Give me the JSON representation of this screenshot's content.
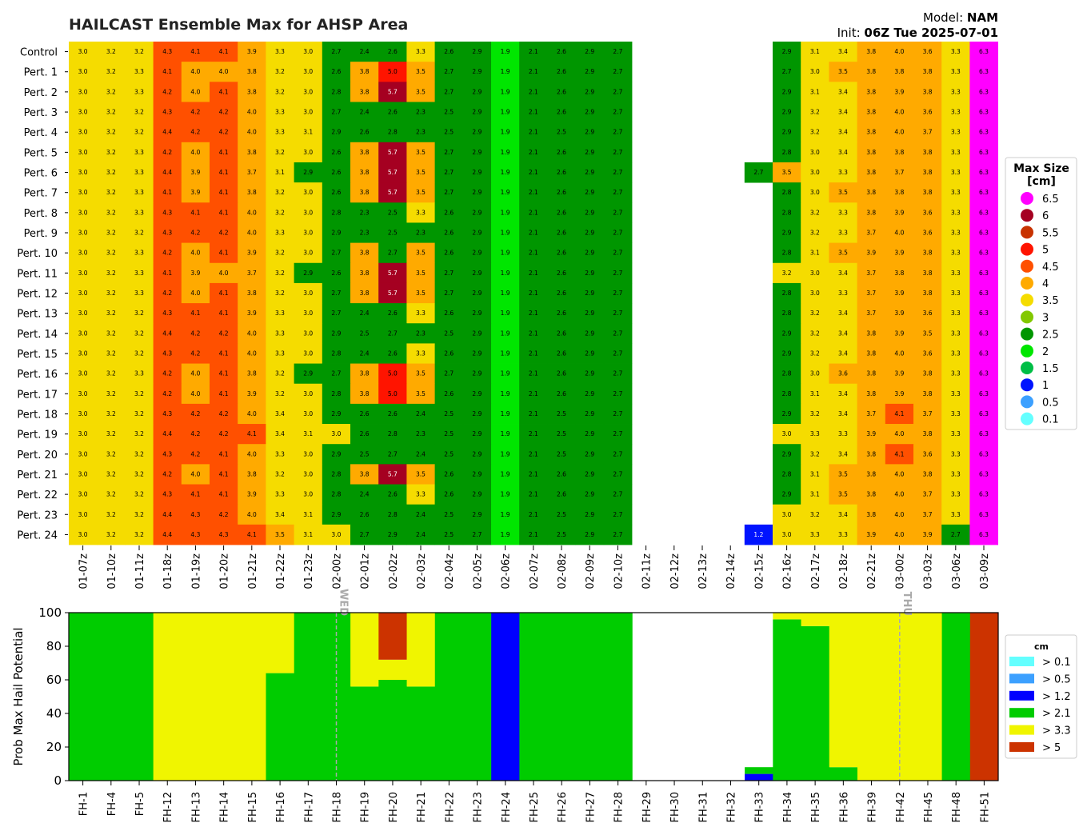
{
  "header": {
    "title": "HAILCAST Ensemble Max for AHSP Area",
    "model_label": "Model:",
    "model_value": "NAM",
    "init_label": "Init:",
    "init_value": "06Z Tue 2025-07-01"
  },
  "colors": {
    "6.5": "#ff00ff",
    "6": "#a50021",
    "5.5": "#c83200",
    "5": "#ff1400",
    "4.5": "#ff5000",
    "4": "#ffaa00",
    "3.5": "#f5dc00",
    "3": "#82c800",
    "2.5": "#009600",
    "2": "#00e600",
    "1.5": "#00be46",
    "1": "#0014ff",
    "0.5": "#3ca0ff",
    "0.1": "#64ffff"
  },
  "chart_data": [
    {
      "type": "heatmap",
      "title": "HAILCAST Ensemble Max for AHSP Area",
      "rows": [
        "Control",
        "Pert. 1",
        "Pert. 2",
        "Pert. 3",
        "Pert. 4",
        "Pert. 5",
        "Pert. 6",
        "Pert. 7",
        "Pert. 8",
        "Pert. 9",
        "Pert. 10",
        "Pert. 11",
        "Pert. 12",
        "Pert. 13",
        "Pert. 14",
        "Pert. 15",
        "Pert. 16",
        "Pert. 17",
        "Pert. 18",
        "Pert. 19",
        "Pert. 20",
        "Pert. 21",
        "Pert. 22",
        "Pert. 23",
        "Pert. 24"
      ],
      "columns": [
        "01-07z",
        "01-10z",
        "01-11z",
        "01-18z",
        "01-19z",
        "01-20z",
        "01-21z",
        "01-22z",
        "01-23z",
        "02-00z",
        "02-01z",
        "02-02z",
        "02-03z",
        "02-04z",
        "02-05z",
        "02-06z",
        "02-07z",
        "02-08z",
        "02-09z",
        "02-10z",
        "02-11z",
        "02-12z",
        "02-13z",
        "02-14z",
        "02-15z",
        "02-16z",
        "02-17z",
        "02-18z",
        "02-21z",
        "03-00z",
        "03-03z",
        "03-06z",
        "03-09z"
      ],
      "values": [
        [
          3.0,
          3.2,
          3.2,
          4.3,
          4.1,
          4.1,
          3.9,
          3.3,
          3.0,
          2.7,
          2.4,
          2.6,
          3.3,
          2.6,
          2.9,
          1.9,
          2.1,
          2.6,
          2.9,
          2.7,
          null,
          null,
          null,
          null,
          null,
          2.9,
          3.1,
          3.4,
          3.8,
          4.0,
          3.6,
          3.3,
          6.3
        ],
        [
          3.0,
          3.2,
          3.3,
          4.1,
          4.0,
          4.0,
          3.8,
          3.2,
          3.0,
          2.6,
          3.8,
          5.0,
          3.5,
          2.7,
          2.9,
          1.9,
          2.1,
          2.6,
          2.9,
          2.7,
          null,
          null,
          null,
          null,
          null,
          2.7,
          3.0,
          3.5,
          3.8,
          3.8,
          3.8,
          3.3,
          6.3
        ],
        [
          3.0,
          3.2,
          3.3,
          4.2,
          4.0,
          4.1,
          3.8,
          3.2,
          3.0,
          2.8,
          3.8,
          5.7,
          3.5,
          2.7,
          2.9,
          1.9,
          2.1,
          2.6,
          2.9,
          2.7,
          null,
          null,
          null,
          null,
          null,
          2.9,
          3.1,
          3.4,
          3.8,
          3.9,
          3.8,
          3.3,
          6.3
        ],
        [
          3.0,
          3.2,
          3.2,
          4.3,
          4.2,
          4.2,
          4.0,
          3.3,
          3.0,
          2.7,
          2.4,
          2.6,
          2.3,
          2.5,
          2.9,
          1.9,
          2.1,
          2.6,
          2.9,
          2.7,
          null,
          null,
          null,
          null,
          null,
          2.9,
          3.2,
          3.4,
          3.8,
          4.0,
          3.6,
          3.3,
          6.3
        ],
        [
          3.0,
          3.2,
          3.2,
          4.4,
          4.2,
          4.2,
          4.0,
          3.3,
          3.1,
          2.9,
          2.6,
          2.8,
          2.3,
          2.5,
          2.9,
          1.9,
          2.1,
          2.5,
          2.9,
          2.7,
          null,
          null,
          null,
          null,
          null,
          2.9,
          3.2,
          3.4,
          3.8,
          4.0,
          3.7,
          3.3,
          6.3
        ],
        [
          3.0,
          3.2,
          3.3,
          4.2,
          4.0,
          4.1,
          3.8,
          3.2,
          3.0,
          2.6,
          3.8,
          5.7,
          3.5,
          2.7,
          2.9,
          1.9,
          2.1,
          2.6,
          2.9,
          2.7,
          null,
          null,
          null,
          null,
          null,
          2.8,
          3.0,
          3.4,
          3.8,
          3.8,
          3.8,
          3.3,
          6.3
        ],
        [
          3.0,
          3.2,
          3.3,
          4.4,
          3.9,
          4.1,
          3.7,
          3.1,
          2.9,
          2.6,
          3.8,
          5.7,
          3.5,
          2.7,
          2.9,
          1.9,
          2.1,
          2.6,
          2.9,
          2.7,
          null,
          null,
          null,
          null,
          2.7,
          3.5,
          3.0,
          3.3,
          3.8,
          3.7,
          3.8,
          3.3,
          6.3
        ],
        [
          3.0,
          3.2,
          3.3,
          4.1,
          3.9,
          4.1,
          3.8,
          3.2,
          3.0,
          2.6,
          3.8,
          5.7,
          3.5,
          2.7,
          2.9,
          1.9,
          2.1,
          2.6,
          2.9,
          2.7,
          null,
          null,
          null,
          null,
          null,
          2.8,
          3.0,
          3.5,
          3.8,
          3.8,
          3.8,
          3.3,
          6.3
        ],
        [
          3.0,
          3.2,
          3.3,
          4.3,
          4.1,
          4.1,
          4.0,
          3.2,
          3.0,
          2.8,
          2.3,
          2.5,
          3.3,
          2.6,
          2.9,
          1.9,
          2.1,
          2.6,
          2.9,
          2.7,
          null,
          null,
          null,
          null,
          null,
          2.8,
          3.2,
          3.3,
          3.8,
          3.9,
          3.6,
          3.3,
          6.3
        ],
        [
          3.0,
          3.2,
          3.2,
          4.3,
          4.2,
          4.2,
          4.0,
          3.3,
          3.0,
          2.9,
          2.3,
          2.5,
          2.3,
          2.6,
          2.9,
          1.9,
          2.1,
          2.6,
          2.9,
          2.7,
          null,
          null,
          null,
          null,
          null,
          2.9,
          3.2,
          3.3,
          3.7,
          4.0,
          3.6,
          3.3,
          6.3
        ],
        [
          3.0,
          3.2,
          3.3,
          4.2,
          4.0,
          4.1,
          3.9,
          3.2,
          3.0,
          2.7,
          3.8,
          2.7,
          3.5,
          2.6,
          2.9,
          1.9,
          2.1,
          2.6,
          2.9,
          2.7,
          null,
          null,
          null,
          null,
          null,
          2.8,
          3.1,
          3.5,
          3.9,
          3.9,
          3.8,
          3.3,
          6.3
        ],
        [
          3.0,
          3.2,
          3.3,
          4.1,
          3.9,
          4.0,
          3.7,
          3.2,
          2.9,
          2.6,
          3.8,
          5.7,
          3.5,
          2.7,
          2.9,
          1.9,
          2.1,
          2.6,
          2.9,
          2.7,
          null,
          null,
          null,
          null,
          null,
          3.2,
          3.0,
          3.4,
          3.7,
          3.8,
          3.8,
          3.3,
          6.3
        ],
        [
          3.0,
          3.2,
          3.3,
          4.2,
          4.0,
          4.1,
          3.8,
          3.2,
          3.0,
          2.7,
          3.8,
          5.7,
          3.5,
          2.7,
          2.9,
          1.9,
          2.1,
          2.6,
          2.9,
          2.7,
          null,
          null,
          null,
          null,
          null,
          2.8,
          3.0,
          3.3,
          3.7,
          3.9,
          3.8,
          3.3,
          6.3
        ],
        [
          3.0,
          3.2,
          3.2,
          4.3,
          4.1,
          4.1,
          3.9,
          3.3,
          3.0,
          2.7,
          2.4,
          2.6,
          3.3,
          2.6,
          2.9,
          1.9,
          2.1,
          2.6,
          2.9,
          2.7,
          null,
          null,
          null,
          null,
          null,
          2.8,
          3.2,
          3.4,
          3.7,
          3.9,
          3.6,
          3.3,
          6.3
        ],
        [
          3.0,
          3.2,
          3.2,
          4.4,
          4.2,
          4.2,
          4.0,
          3.3,
          3.0,
          2.9,
          2.5,
          2.7,
          2.3,
          2.5,
          2.9,
          1.9,
          2.1,
          2.6,
          2.9,
          2.7,
          null,
          null,
          null,
          null,
          null,
          2.9,
          3.2,
          3.4,
          3.8,
          3.9,
          3.5,
          3.3,
          6.3
        ],
        [
          3.0,
          3.2,
          3.2,
          4.3,
          4.2,
          4.1,
          4.0,
          3.3,
          3.0,
          2.8,
          2.4,
          2.6,
          3.3,
          2.6,
          2.9,
          1.9,
          2.1,
          2.6,
          2.9,
          2.7,
          null,
          null,
          null,
          null,
          null,
          2.9,
          3.2,
          3.4,
          3.8,
          4.0,
          3.6,
          3.3,
          6.3
        ],
        [
          3.0,
          3.2,
          3.3,
          4.2,
          4.0,
          4.1,
          3.8,
          3.2,
          2.9,
          2.7,
          3.8,
          5.0,
          3.5,
          2.7,
          2.9,
          1.9,
          2.1,
          2.6,
          2.9,
          2.7,
          null,
          null,
          null,
          null,
          null,
          2.8,
          3.0,
          3.6,
          3.8,
          3.9,
          3.8,
          3.3,
          6.3
        ],
        [
          3.0,
          3.2,
          3.2,
          4.2,
          4.0,
          4.1,
          3.9,
          3.2,
          3.0,
          2.8,
          3.8,
          5.0,
          3.5,
          2.6,
          2.9,
          1.9,
          2.1,
          2.6,
          2.9,
          2.7,
          null,
          null,
          null,
          null,
          null,
          2.8,
          3.1,
          3.4,
          3.8,
          3.9,
          3.8,
          3.3,
          6.3
        ],
        [
          3.0,
          3.2,
          3.2,
          4.3,
          4.2,
          4.2,
          4.0,
          3.4,
          3.0,
          2.9,
          2.6,
          2.6,
          2.4,
          2.5,
          2.9,
          1.9,
          2.1,
          2.5,
          2.9,
          2.7,
          null,
          null,
          null,
          null,
          null,
          2.9,
          3.2,
          3.4,
          3.7,
          4.1,
          3.7,
          3.3,
          6.3
        ],
        [
          3.0,
          3.2,
          3.2,
          4.4,
          4.2,
          4.2,
          4.1,
          3.4,
          3.1,
          3.0,
          2.6,
          2.8,
          2.3,
          2.5,
          2.9,
          1.9,
          2.1,
          2.5,
          2.9,
          2.7,
          null,
          null,
          null,
          null,
          null,
          3.0,
          3.3,
          3.3,
          3.9,
          4.0,
          3.8,
          3.3,
          6.3
        ],
        [
          3.0,
          3.2,
          3.2,
          4.3,
          4.2,
          4.1,
          4.0,
          3.3,
          3.0,
          2.9,
          2.5,
          2.7,
          2.4,
          2.5,
          2.9,
          1.9,
          2.1,
          2.5,
          2.9,
          2.7,
          null,
          null,
          null,
          null,
          null,
          2.9,
          3.2,
          3.4,
          3.8,
          4.1,
          3.6,
          3.3,
          6.3
        ],
        [
          3.0,
          3.2,
          3.2,
          4.2,
          4.0,
          4.1,
          3.8,
          3.2,
          3.0,
          2.8,
          3.8,
          5.7,
          3.5,
          2.6,
          2.9,
          1.9,
          2.1,
          2.6,
          2.9,
          2.7,
          null,
          null,
          null,
          null,
          null,
          2.8,
          3.1,
          3.5,
          3.8,
          4.0,
          3.8,
          3.3,
          6.3
        ],
        [
          3.0,
          3.2,
          3.2,
          4.3,
          4.1,
          4.1,
          3.9,
          3.3,
          3.0,
          2.8,
          2.4,
          2.6,
          3.3,
          2.6,
          2.9,
          1.9,
          2.1,
          2.6,
          2.9,
          2.7,
          null,
          null,
          null,
          null,
          null,
          2.9,
          3.1,
          3.5,
          3.8,
          4.0,
          3.7,
          3.3,
          6.3
        ],
        [
          3.0,
          3.2,
          3.2,
          4.4,
          4.3,
          4.2,
          4.0,
          3.4,
          3.1,
          2.9,
          2.6,
          2.8,
          2.4,
          2.5,
          2.9,
          1.9,
          2.1,
          2.5,
          2.9,
          2.7,
          null,
          null,
          null,
          null,
          null,
          3.0,
          3.2,
          3.4,
          3.8,
          4.0,
          3.7,
          3.3,
          6.3
        ],
        [
          3.0,
          3.2,
          3.2,
          4.4,
          4.3,
          4.3,
          4.1,
          3.5,
          3.1,
          3.0,
          2.7,
          2.9,
          2.4,
          2.5,
          2.7,
          1.9,
          2.1,
          2.5,
          2.9,
          2.7,
          null,
          null,
          null,
          null,
          1.2,
          3.0,
          3.3,
          3.3,
          3.9,
          4.0,
          3.9,
          2.7,
          6.3
        ]
      ],
      "legend": {
        "title": "Max Size\n[cm]",
        "placement": "right",
        "entries": [
          "6.5",
          "6",
          "5.5",
          "5",
          "4.5",
          "4",
          "3.5",
          "3",
          "2.5",
          "2",
          "1.5",
          "1",
          "0.5",
          "0.1"
        ]
      }
    },
    {
      "type": "area",
      "ylabel": "Prob Max Hail Potential",
      "ylim": [
        0,
        100
      ],
      "yticks": [
        0,
        20,
        40,
        60,
        80,
        100
      ],
      "categories": [
        "FH-1",
        "FH-4",
        "FH-5",
        "FH-12",
        "FH-13",
        "FH-14",
        "FH-15",
        "FH-16",
        "FH-17",
        "FH-18",
        "FH-19",
        "FH-20",
        "FH-21",
        "FH-22",
        "FH-23",
        "FH-24",
        "FH-25",
        "FH-26",
        "FH-27",
        "FH-28",
        "FH-29",
        "FH-30",
        "FH-31",
        "FH-32",
        "FH-33",
        "FH-34",
        "FH-35",
        "FH-36",
        "FH-39",
        "FH-42",
        "FH-45",
        "FH-48",
        "FH-51"
      ],
      "series": [
        {
          "name": "> 0.1",
          "values": [
            0,
            0,
            0,
            0,
            0,
            0,
            0,
            0,
            0,
            0,
            0,
            0,
            0,
            0,
            0,
            0,
            0,
            0,
            0,
            0,
            0,
            0,
            0,
            0,
            0,
            0,
            0,
            0,
            0,
            0,
            0,
            0,
            0
          ]
        },
        {
          "name": "> 0.5",
          "values": [
            0,
            0,
            0,
            0,
            0,
            0,
            0,
            0,
            0,
            0,
            0,
            0,
            0,
            0,
            0,
            0,
            0,
            0,
            0,
            0,
            0,
            0,
            0,
            0,
            0,
            0,
            0,
            0,
            0,
            0,
            0,
            0,
            0
          ]
        },
        {
          "name": "> 1.2",
          "values": [
            0,
            0,
            0,
            0,
            0,
            0,
            0,
            0,
            0,
            0,
            0,
            0,
            0,
            0,
            0,
            100,
            0,
            0,
            0,
            0,
            0,
            0,
            0,
            0,
            4,
            0,
            0,
            0,
            0,
            0,
            0,
            0,
            0
          ]
        },
        {
          "name": "> 2.1",
          "values": [
            100,
            100,
            100,
            0,
            0,
            0,
            0,
            64,
            100,
            100,
            56,
            60,
            56,
            100,
            100,
            0,
            100,
            100,
            100,
            100,
            0,
            0,
            0,
            0,
            4,
            96,
            92,
            8,
            0,
            0,
            0,
            100,
            0
          ]
        },
        {
          "name": "> 3.3",
          "values": [
            0,
            0,
            0,
            100,
            100,
            100,
            100,
            36,
            0,
            0,
            44,
            12,
            44,
            0,
            0,
            0,
            0,
            0,
            0,
            0,
            0,
            0,
            0,
            0,
            0,
            4,
            8,
            92,
            100,
            100,
            100,
            0,
            0
          ]
        },
        {
          "name": "> 5",
          "values": [
            0,
            0,
            0,
            0,
            0,
            0,
            0,
            0,
            0,
            0,
            0,
            28,
            0,
            0,
            0,
            0,
            0,
            0,
            0,
            0,
            0,
            0,
            0,
            0,
            0,
            0,
            0,
            0,
            0,
            0,
            0,
            0,
            100
          ]
        }
      ],
      "annotations": [
        {
          "text": "WED",
          "at": "FH-18"
        },
        {
          "text": "THU",
          "at": "FH-42"
        }
      ],
      "legend": {
        "title": "cm",
        "placement": "right"
      }
    }
  ]
}
